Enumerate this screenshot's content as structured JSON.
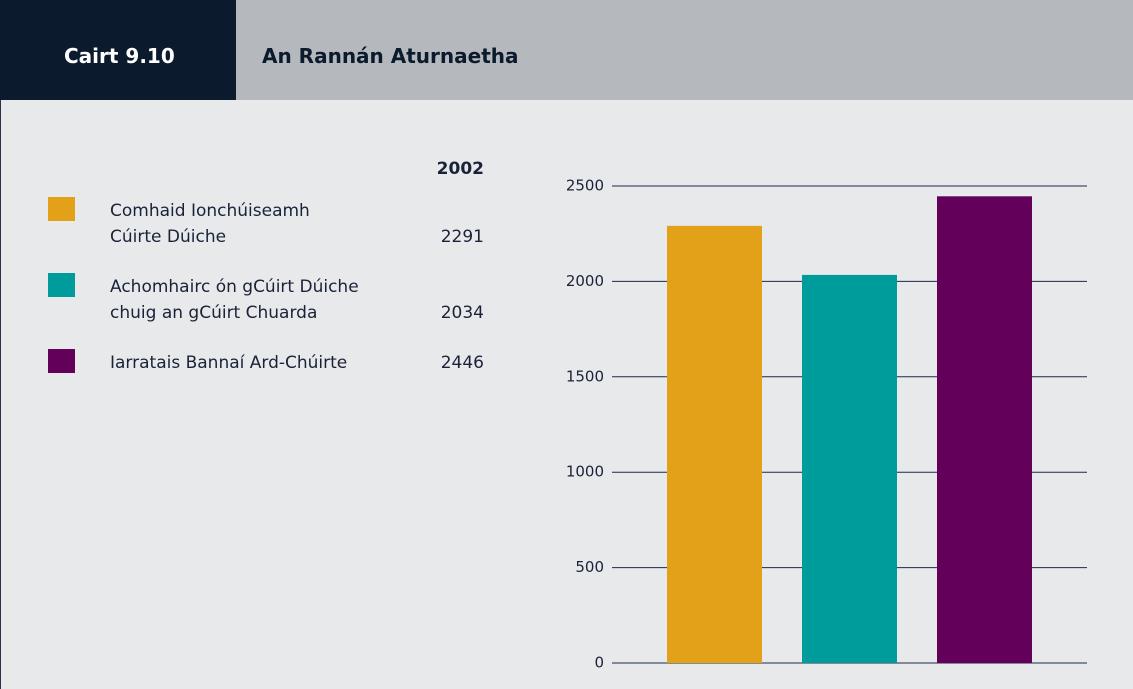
{
  "chart_data": {
    "type": "bar",
    "label": "Cairt 9.10",
    "title": "An Rannán Aturnaetha",
    "column_header": "2002",
    "categories": [
      "Comhaid Ionchúiseamh\nCúirte Dúiche",
      "Achomhairc ón gCúirt Dúiche\nchuig an gCúirt Chuarda",
      "Iarratais Bannaí Ard-Chúirte"
    ],
    "values": [
      2291,
      2034,
      2446
    ],
    "colors": [
      "#e3a11a",
      "#009c9c",
      "#62005a"
    ],
    "ylim": [
      0,
      2500
    ],
    "yticks": [
      0,
      500,
      1000,
      1500,
      2000,
      2500
    ],
    "grid": true
  }
}
